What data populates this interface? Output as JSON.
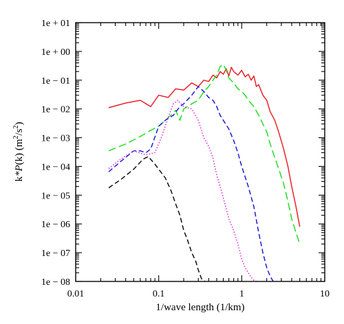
{
  "chart_data": {
    "type": "line",
    "title": "",
    "xlabel": "1/wave length (1/km)",
    "ylabel": "k*P(k) (m²/s²)",
    "ylabel_parts": {
      "pre": "k",
      "italic": "*P",
      "mid": "(k)  (m",
      "sup1": "2",
      "slash": "/s",
      "sup2": "2",
      "post": ")"
    },
    "xscale": "log",
    "yscale": "log",
    "xlim": [
      0.01,
      10
    ],
    "ylim": [
      1e-08,
      10
    ],
    "xticks": [
      {
        "value": 0.01,
        "label": "0.01"
      },
      {
        "value": 0.1,
        "label": "0.1"
      },
      {
        "value": 1,
        "label": "1"
      },
      {
        "value": 10,
        "label": "10"
      }
    ],
    "yticks": [
      {
        "value": 10,
        "label": "1e + 01"
      },
      {
        "value": 1,
        "label": "1e + 00"
      },
      {
        "value": 0.1,
        "label": "1e − 01"
      },
      {
        "value": 0.01,
        "label": "1e − 02"
      },
      {
        "value": 0.001,
        "label": "1e − 03"
      },
      {
        "value": 0.0001,
        "label": "1e − 04"
      },
      {
        "value": 1e-05,
        "label": "1e − 05"
      },
      {
        "value": 1e-06,
        "label": "1e − 06"
      },
      {
        "value": 1e-07,
        "label": "1e − 07"
      },
      {
        "value": 1e-08,
        "label": "1e − 08"
      }
    ],
    "grid": false,
    "legend": "none",
    "series": [
      {
        "color": "#e8232a",
        "style": "solid",
        "x": [
          0.025,
          0.04,
          0.06,
          0.08,
          0.1,
          0.13,
          0.16,
          0.2,
          0.25,
          0.3,
          0.35,
          0.4,
          0.45,
          0.5,
          0.55,
          0.6,
          0.65,
          0.7,
          0.75,
          0.8,
          0.9,
          1.0,
          1.1,
          1.2,
          1.3,
          1.4,
          1.5,
          1.6,
          1.8,
          2.0,
          2.2,
          2.5,
          2.8,
          3.2,
          3.6,
          4.0,
          4.5,
          5.0
        ],
        "y": [
          0.011,
          0.016,
          0.02,
          0.012,
          0.03,
          0.025,
          0.05,
          0.045,
          0.08,
          0.06,
          0.1,
          0.09,
          0.15,
          0.12,
          0.2,
          0.16,
          0.25,
          0.14,
          0.28,
          0.2,
          0.15,
          0.22,
          0.13,
          0.16,
          0.1,
          0.14,
          0.06,
          0.07,
          0.03,
          0.02,
          0.008,
          0.004,
          0.0015,
          0.0004,
          0.0001,
          2e-05,
          4e-06,
          8e-07
        ]
      },
      {
        "color": "#22dd22",
        "style": "longdash",
        "x": [
          0.025,
          0.04,
          0.06,
          0.08,
          0.1,
          0.12,
          0.14,
          0.16,
          0.18,
          0.2,
          0.25,
          0.3,
          0.35,
          0.4,
          0.45,
          0.5,
          0.55,
          0.6,
          0.65,
          0.7,
          0.8,
          0.9,
          1.0,
          1.1,
          1.2,
          1.4,
          1.6,
          1.8,
          2.0,
          2.2,
          2.5,
          2.8,
          3.2,
          3.6,
          4.0,
          4.5,
          5.0
        ],
        "y": [
          0.00035,
          0.0006,
          0.0011,
          0.0018,
          0.0025,
          0.004,
          0.006,
          0.009,
          0.004,
          0.01,
          0.015,
          0.02,
          0.04,
          0.06,
          0.1,
          0.15,
          0.3,
          0.35,
          0.22,
          0.12,
          0.08,
          0.05,
          0.04,
          0.03,
          0.02,
          0.012,
          0.006,
          0.003,
          0.0016,
          0.0006,
          0.0002,
          8e-05,
          2.5e-05,
          6e-06,
          1.5e-06,
          5e-07,
          2e-07
        ]
      },
      {
        "color": "#1a1adc",
        "style": "dashed",
        "x": [
          0.025,
          0.035,
          0.05,
          0.06,
          0.07,
          0.08,
          0.1,
          0.12,
          0.15,
          0.18,
          0.2,
          0.25,
          0.3,
          0.35,
          0.4,
          0.45,
          0.5,
          0.55,
          0.6,
          0.7,
          0.8,
          0.9,
          1.0,
          1.2,
          1.4,
          1.6,
          1.8,
          2.0,
          2.2,
          2.4
        ],
        "y": [
          6.5e-05,
          0.00015,
          0.00035,
          0.00035,
          0.0003,
          0.0004,
          0.0025,
          0.004,
          0.006,
          0.012,
          0.015,
          0.03,
          0.06,
          0.04,
          0.025,
          0.02,
          0.012,
          0.006,
          0.004,
          0.002,
          0.0008,
          0.0003,
          0.0001,
          2e-05,
          4e-06,
          5e-07,
          1e-07,
          3e-08,
          1.5e-08,
          1e-08
        ]
      },
      {
        "color": "#dd22dd",
        "style": "dotted",
        "x": [
          0.025,
          0.035,
          0.05,
          0.07,
          0.09,
          0.11,
          0.13,
          0.15,
          0.17,
          0.2,
          0.25,
          0.3,
          0.35,
          0.4,
          0.45,
          0.5,
          0.55,
          0.6,
          0.7,
          0.8,
          0.9,
          1.0,
          1.1,
          1.2,
          1.3,
          1.4,
          1.5
        ],
        "y": [
          8.5e-05,
          0.00018,
          0.00035,
          0.00025,
          0.0003,
          0.0012,
          0.005,
          0.015,
          0.02,
          0.012,
          0.01,
          0.004,
          0.001,
          0.0005,
          0.0002,
          5e-05,
          2e-05,
          8e-06,
          1.5e-06,
          6e-07,
          2e-07,
          6e-08,
          3e-08,
          2e-08,
          1.4e-08,
          1.1e-08,
          1e-08
        ]
      },
      {
        "color": "#111111",
        "style": "dashed",
        "x": [
          0.025,
          0.035,
          0.05,
          0.065,
          0.075,
          0.09,
          0.1,
          0.12,
          0.14,
          0.16,
          0.18,
          0.2,
          0.22,
          0.25,
          0.28,
          0.3,
          0.33,
          0.36
        ],
        "y": [
          1.8e-05,
          3.5e-05,
          8e-05,
          0.00018,
          0.00022,
          0.00012,
          8e-05,
          4e-05,
          1.5e-05,
          5e-06,
          2e-06,
          6e-07,
          3e-07,
          1e-07,
          5e-08,
          2.5e-08,
          1.2e-08,
          1e-08
        ]
      }
    ]
  }
}
